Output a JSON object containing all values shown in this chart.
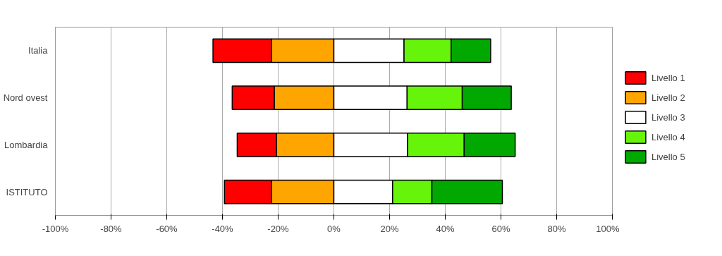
{
  "chart_data": {
    "type": "bar",
    "orientation": "horizontal",
    "stacked": true,
    "categories": [
      "Italia",
      "Nord ovest",
      "Lombardia",
      "ISTITUTO"
    ],
    "series": [
      {
        "name": "Livello 1",
        "color": "#ff0000",
        "values": [
          -21.0,
          -15.1,
          -14.1,
          -16.9
        ]
      },
      {
        "name": "Livello 2",
        "color": "#ffa500",
        "values": [
          -22.4,
          -21.4,
          -20.6,
          -22.4
        ]
      },
      {
        "name": "Livello 3",
        "color": "#ffffff",
        "values": [
          25.2,
          26.3,
          26.5,
          21.1
        ]
      },
      {
        "name": "Livello 4",
        "color": "#66f50a",
        "values": [
          16.9,
          19.8,
          20.3,
          14.1
        ]
      },
      {
        "name": "Livello 5",
        "color": "#00a800",
        "values": [
          14.2,
          17.6,
          18.3,
          25.3
        ]
      }
    ],
    "xlim": [
      -100,
      100
    ],
    "xticks": [
      {
        "value": -100,
        "label": "-100%"
      },
      {
        "value": -80,
        "label": "-80%"
      },
      {
        "value": -60,
        "label": "-60%"
      },
      {
        "value": -40,
        "label": "-40%"
      },
      {
        "value": -20,
        "label": "-20%"
      },
      {
        "value": 0,
        "label": "0%"
      },
      {
        "value": 20,
        "label": "20%"
      },
      {
        "value": 40,
        "label": "40%"
      },
      {
        "value": 60,
        "label": "60%"
      },
      {
        "value": 80,
        "label": "80%"
      },
      {
        "value": 100,
        "label": "100%"
      }
    ],
    "grid": "x",
    "legend": "right"
  }
}
